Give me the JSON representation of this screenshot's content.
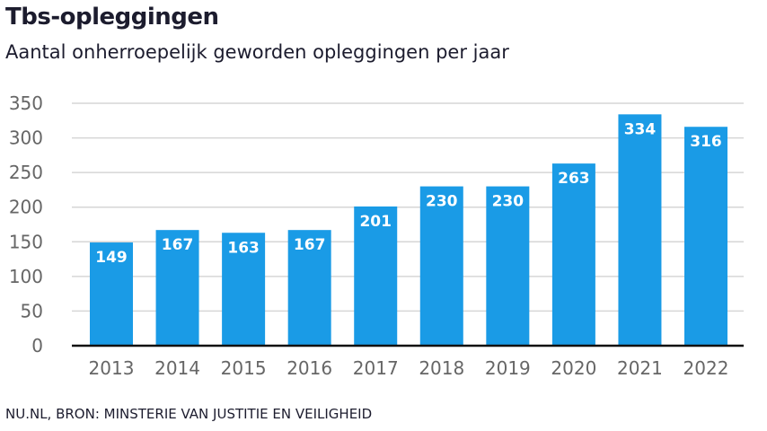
{
  "chart_data": {
    "type": "bar",
    "title": "Tbs-opleggingen",
    "subtitle": "Aantal onherroepelijk geworden opleggingen per jaar",
    "categories": [
      "2013",
      "2014",
      "2015",
      "2016",
      "2017",
      "2018",
      "2019",
      "2020",
      "2021",
      "2022"
    ],
    "values": [
      149,
      167,
      163,
      167,
      201,
      230,
      230,
      263,
      334,
      316
    ],
    "ylim": [
      0,
      350
    ],
    "yticks": [
      0,
      50,
      100,
      150,
      200,
      250,
      300,
      350
    ],
    "grid": true,
    "bar_color": "#1a9be6",
    "data_labels": true
  },
  "source": "NU.NL, BRON: MINSTERIE VAN JUSTITIE EN VEILIGHEID"
}
